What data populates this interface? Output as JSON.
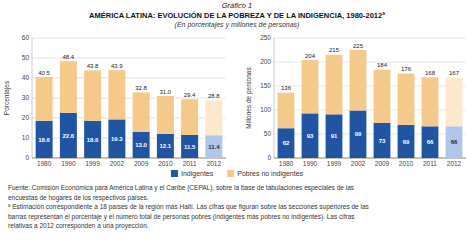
{
  "chart_data": [
    {
      "type": "bar",
      "stacked": true,
      "title": "AMÉRICA LATINA: EVOLUCIÓN DE LA POBREZA Y DE LA INDIGENCIA, 1980-2012ª",
      "subtitle": "(En porcentajes y millones de personas)",
      "annotations": [
        "Gráfico 1",
        "Fuente: Comisión Económica para América Latina y el Caribe (CEPAL), sobre la base de tabulaciones especiales de las",
        "encuestas de hogares de los respectivos países.",
        "ª Estimación correspondiente a 18 países de la región más Haití. Las cifras que figuran sobre las secciones superiores de las",
        "barras representan el porcentaje y el número total de personas pobres (indigentes más pobres no indigentes). Las cifras",
        "relativas a 2012 corresponden a una proyección."
      ],
      "ylabel": "Porcentajes",
      "categories": [
        "1980",
        "1990",
        "1999",
        "2002",
        "2009",
        "2010",
        "2011",
        "2012"
      ],
      "series": [
        {
          "name": "Indigentes",
          "color": "#2055a4",
          "colors": [
            "#2055a4",
            "#2055a4",
            "#2055a4",
            "#2055a4",
            "#2055a4",
            "#2055a4",
            "#2055a4",
            "#aec6e8"
          ],
          "values": [
            18.6,
            22.6,
            18.6,
            19.3,
            13.0,
            12.1,
            11.5,
            11.4
          ],
          "value_labels": [
            "18.6",
            "22.6",
            "18.6",
            "19.3",
            "13.0",
            "12.1",
            "11.5",
            "11.4"
          ],
          "data_labels": true
        },
        {
          "name": "Pobres no indigentes",
          "color": "#f5c98a",
          "colors": [
            "#f5c98a",
            "#f5c98a",
            "#f5c98a",
            "#f5c98a",
            "#f5c98a",
            "#f5c98a",
            "#f5c98a",
            "#fde8cc"
          ],
          "values": [
            21.9,
            25.8,
            25.2,
            24.6,
            19.8,
            18.9,
            17.9,
            17.4
          ]
        }
      ],
      "totals": {
        "values": [
          40.5,
          48.4,
          43.8,
          43.9,
          32.8,
          31.0,
          29.4,
          28.8
        ],
        "value_labels": [
          "40.5",
          "48.4",
          "43.8",
          "43.9",
          "32.8",
          "31.0",
          "29.4",
          "28.8"
        ]
      },
      "ylim": [
        0,
        60
      ],
      "yticks": [
        0,
        10,
        20,
        30,
        40,
        50,
        60
      ],
      "grid": true,
      "legend": "bottom"
    },
    {
      "type": "bar",
      "stacked": true,
      "ylabel": "Millones de personas",
      "categories": [
        "1980",
        "1990",
        "1999",
        "2002",
        "2009",
        "2010",
        "2011",
        "2012"
      ],
      "series": [
        {
          "name": "Indigentes",
          "color": "#2055a4",
          "colors": [
            "#2055a4",
            "#2055a4",
            "#2055a4",
            "#2055a4",
            "#2055a4",
            "#2055a4",
            "#2055a4",
            "#aec6e8"
          ],
          "values": [
            62,
            93,
            91,
            99,
            73,
            69,
            66,
            66
          ],
          "data_labels": true
        },
        {
          "name": "Pobres no indigentes",
          "color": "#f5c98a",
          "colors": [
            "#f5c98a",
            "#f5c98a",
            "#f5c98a",
            "#f5c98a",
            "#f5c98a",
            "#f5c98a",
            "#f5c98a",
            "#fde8cc"
          ],
          "values": [
            74,
            111,
            124,
            126,
            111,
            107,
            102,
            101
          ]
        }
      ],
      "totals": {
        "values": [
          136,
          204,
          215,
          225,
          184,
          176,
          168,
          167
        ]
      },
      "ylim": [
        0,
        250
      ],
      "yticks": [
        0,
        50,
        100,
        150,
        200,
        250
      ],
      "grid": true
    }
  ]
}
